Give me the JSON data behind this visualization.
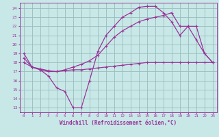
{
  "background_color": "#c8e8e8",
  "grid_color": "#99bbbb",
  "line_color": "#993399",
  "xlabel": "Windchill (Refroidissement éolien,°C)",
  "ylabel_ticks": [
    13,
    14,
    15,
    16,
    17,
    18,
    19,
    20,
    21,
    22,
    23,
    24
  ],
  "xlabel_ticks": [
    0,
    1,
    2,
    3,
    4,
    5,
    6,
    7,
    8,
    9,
    10,
    11,
    12,
    13,
    14,
    15,
    16,
    17,
    18,
    19,
    20,
    21,
    22,
    23
  ],
  "ylim": [
    12.5,
    24.6
  ],
  "xlim": [
    -0.5,
    23.5
  ],
  "line1_x": [
    0,
    1,
    2,
    3,
    4,
    5,
    6,
    7,
    8,
    9,
    10,
    11,
    12,
    13,
    14,
    15,
    16,
    17,
    18,
    19,
    20,
    21,
    22,
    23
  ],
  "line1_y": [
    19.0,
    17.5,
    17.2,
    16.5,
    15.2,
    14.8,
    13.0,
    13.0,
    16.0,
    19.2,
    21.0,
    22.0,
    23.0,
    23.5,
    24.1,
    24.2,
    24.2,
    23.5,
    22.5,
    21.0,
    22.0,
    22.0,
    19.0,
    18.0
  ],
  "line2_x": [
    0,
    1,
    2,
    3,
    4,
    5,
    6,
    7,
    8,
    9,
    10,
    11,
    12,
    13,
    14,
    15,
    16,
    17,
    18,
    19,
    20,
    21,
    22,
    23
  ],
  "line2_y": [
    18.0,
    17.5,
    17.2,
    17.0,
    17.0,
    17.1,
    17.2,
    17.2,
    17.3,
    17.4,
    17.5,
    17.6,
    17.7,
    17.8,
    17.9,
    18.0,
    18.0,
    18.0,
    18.0,
    18.0,
    18.0,
    18.0,
    18.0,
    18.0
  ],
  "line3_x": [
    0,
    1,
    2,
    3,
    4,
    5,
    6,
    7,
    8,
    9,
    10,
    11,
    12,
    13,
    14,
    15,
    16,
    17,
    18,
    19,
    20,
    21,
    22,
    23
  ],
  "line3_y": [
    18.5,
    17.5,
    17.3,
    17.1,
    17.0,
    17.2,
    17.5,
    17.8,
    18.2,
    18.8,
    19.8,
    20.8,
    21.5,
    22.0,
    22.5,
    22.8,
    23.0,
    23.2,
    23.5,
    22.0,
    22.0,
    20.5,
    19.0,
    18.0
  ]
}
